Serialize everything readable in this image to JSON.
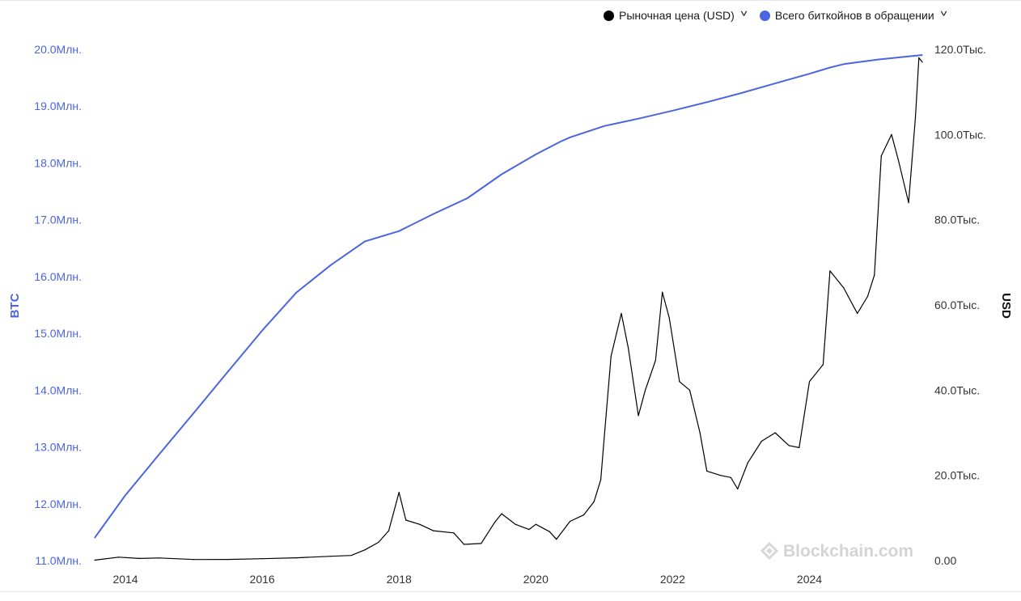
{
  "legend": {
    "price_label": "Рыночная цена (USD)",
    "supply_label": "Всего биткойнов в обращении",
    "chevron_icon": "chevron-down-icon"
  },
  "watermark": "Blockchain.com",
  "colors": {
    "price": "#000000",
    "supply": "#4b64e3",
    "left_axis_text": "#4b64e3",
    "right_axis_text": "#333333"
  },
  "chart_data": {
    "type": "line",
    "xlabel": "",
    "x_ticks": [
      "2014",
      "2016",
      "2018",
      "2020",
      "2022",
      "2024"
    ],
    "x_tick_years": [
      2014,
      2016,
      2018,
      2020,
      2022,
      2024
    ],
    "xlim": [
      2013.55,
      2025.65
    ],
    "left_axis": {
      "label": "BTC",
      "ticks": [
        "11.0Млн.",
        "12.0Млн.",
        "13.0Млн.",
        "14.0Млн.",
        "15.0Млн.",
        "16.0Млн.",
        "17.0Млн.",
        "18.0Млн.",
        "19.0Млн.",
        "20.0Млн."
      ],
      "tick_values": [
        11000000,
        12000000,
        13000000,
        14000000,
        15000000,
        16000000,
        17000000,
        18000000,
        19000000,
        20000000
      ],
      "ylim": [
        11000000,
        20000000
      ]
    },
    "right_axis": {
      "label": "USD",
      "ticks": [
        "0.00",
        "20.0Тыс.",
        "40.0Тыс.",
        "60.0Тыс.",
        "80.0Тыс.",
        "100.0Тыс.",
        "120.0Тыс."
      ],
      "tick_values": [
        0,
        20000,
        40000,
        60000,
        80000,
        100000,
        120000
      ],
      "ylim": [
        0,
        120000
      ]
    },
    "grid": false,
    "legend_position": "top-right",
    "series": [
      {
        "name": "Всего биткойнов в обращении",
        "axis": "left",
        "x": [
          2013.55,
          2014.0,
          2014.5,
          2015.0,
          2015.5,
          2016.0,
          2016.5,
          2017.0,
          2017.5,
          2018.0,
          2018.5,
          2019.0,
          2019.5,
          2020.0,
          2020.35,
          2020.5,
          2021.0,
          2021.5,
          2022.0,
          2022.5,
          2023.0,
          2023.5,
          2024.0,
          2024.3,
          2024.5,
          2025.0,
          2025.65
        ],
        "values": [
          11400000,
          12150000,
          12880000,
          13600000,
          14330000,
          15050000,
          15720000,
          16200000,
          16620000,
          16800000,
          17100000,
          17380000,
          17800000,
          18150000,
          18370000,
          18450000,
          18650000,
          18780000,
          18920000,
          19070000,
          19230000,
          19400000,
          19570000,
          19680000,
          19740000,
          19820000,
          19900000
        ]
      },
      {
        "name": "Рыночная цена (USD)",
        "axis": "right",
        "x": [
          2013.55,
          2013.9,
          2014.0,
          2014.2,
          2014.5,
          2015.0,
          2015.5,
          2016.0,
          2016.5,
          2017.0,
          2017.3,
          2017.5,
          2017.7,
          2017.85,
          2017.95,
          2018.0,
          2018.1,
          2018.3,
          2018.5,
          2018.8,
          2018.95,
          2019.2,
          2019.4,
          2019.5,
          2019.7,
          2019.9,
          2020.0,
          2020.2,
          2020.3,
          2020.5,
          2020.7,
          2020.85,
          2020.95,
          2021.0,
          2021.1,
          2021.25,
          2021.35,
          2021.5,
          2021.6,
          2021.75,
          2021.85,
          2021.95,
          2022.1,
          2022.25,
          2022.4,
          2022.5,
          2022.7,
          2022.85,
          2022.95,
          2023.1,
          2023.3,
          2023.5,
          2023.7,
          2023.85,
          2024.0,
          2024.2,
          2024.3,
          2024.5,
          2024.7,
          2024.85,
          2024.95,
          2025.05,
          2025.2,
          2025.3,
          2025.45,
          2025.55,
          2025.6,
          2025.65
        ],
        "values": [
          100,
          800,
          700,
          500,
          600,
          250,
          260,
          430,
          650,
          1000,
          1200,
          2500,
          4300,
          7000,
          13000,
          16000,
          9500,
          8500,
          7000,
          6500,
          3800,
          4000,
          9000,
          11000,
          8500,
          7300,
          8500,
          6800,
          5000,
          9200,
          10700,
          13800,
          19000,
          29000,
          48000,
          58000,
          50000,
          34000,
          40000,
          47000,
          63000,
          57000,
          42000,
          40000,
          30000,
          21000,
          20000,
          19500,
          16800,
          23000,
          28000,
          30000,
          27000,
          26500,
          42000,
          46000,
          68000,
          64000,
          58000,
          62000,
          67000,
          95000,
          100000,
          94000,
          84000,
          104000,
          118000,
          117000
        ]
      }
    ]
  }
}
